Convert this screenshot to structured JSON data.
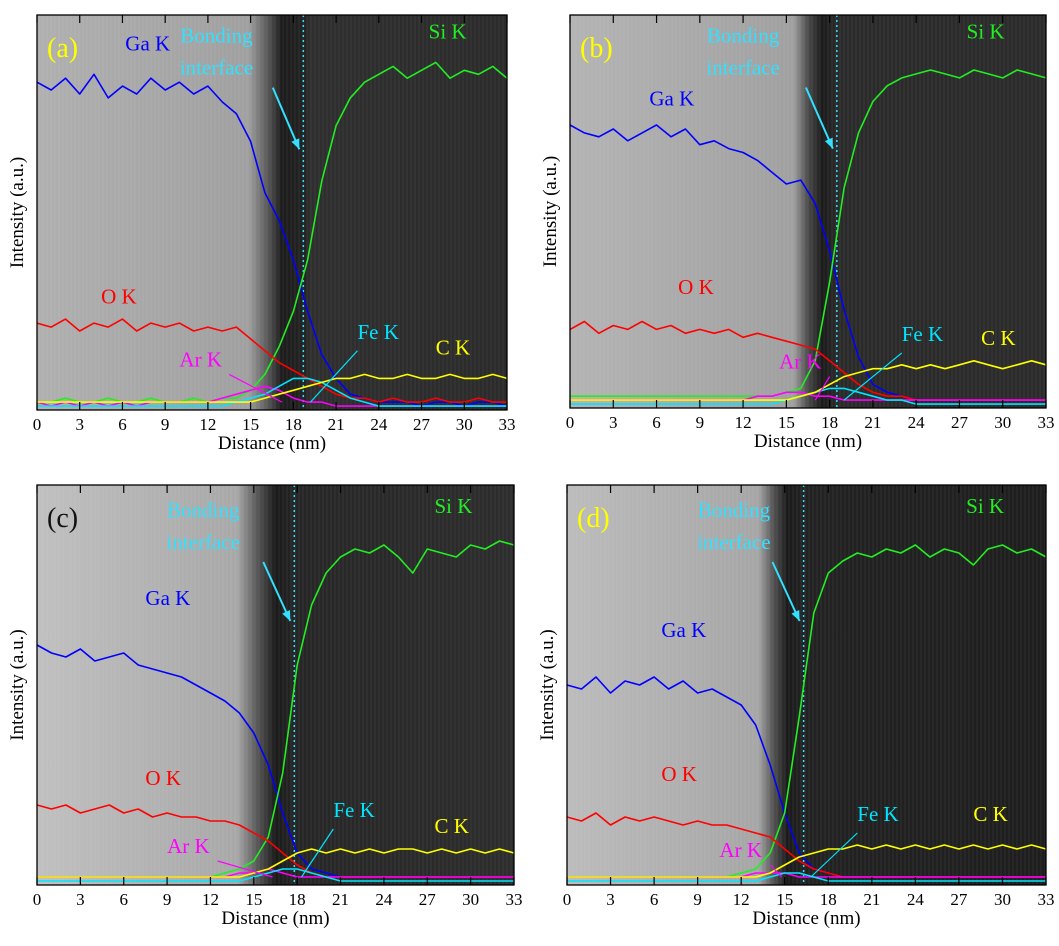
{
  "chart_data": [
    {
      "type": "line",
      "panel_label": "(a)",
      "label_color": "#ffff00",
      "xlabel": "Distance (nm)",
      "ylabel": "Intensity (a.u.)",
      "annotation": [
        "Bonding",
        "interface"
      ],
      "interface_x": 18.7,
      "xlim": [
        0,
        33
      ],
      "xticks": [
        0,
        3,
        6,
        9,
        12,
        15,
        18,
        21,
        24,
        27,
        30,
        33
      ],
      "ylim": [
        0,
        100
      ],
      "x": [
        0,
        1,
        2,
        3,
        4,
        5,
        6,
        7,
        8,
        9,
        10,
        11,
        12,
        13,
        14,
        15,
        16,
        17,
        18,
        19,
        20,
        21,
        22,
        23,
        24,
        25,
        26,
        27,
        28,
        29,
        30,
        31,
        32,
        33
      ],
      "series": [
        {
          "name": "Ga K",
          "color": "#0000ff",
          "values": [
            83,
            81,
            84,
            80,
            85,
            79,
            82,
            80,
            84,
            81,
            83,
            80,
            82,
            78,
            75,
            68,
            55,
            48,
            38,
            25,
            14,
            8,
            4,
            3,
            2,
            2,
            2,
            1,
            2,
            2,
            1,
            2,
            2,
            1
          ]
        },
        {
          "name": "Si K",
          "color": "#22ee22",
          "values": [
            2,
            2,
            3,
            2,
            2,
            3,
            2,
            2,
            3,
            2,
            2,
            3,
            2,
            3,
            3,
            5,
            9,
            16,
            25,
            38,
            58,
            72,
            79,
            83,
            85,
            87,
            84,
            86,
            88,
            84,
            86,
            85,
            87,
            84
          ]
        },
        {
          "name": "O K",
          "color": "#ff0000",
          "values": [
            22,
            21,
            23,
            20,
            22,
            21,
            23,
            20,
            22,
            21,
            22,
            20,
            21,
            20,
            21,
            18,
            15,
            12,
            10,
            8,
            6,
            4,
            3,
            3,
            2,
            3,
            2,
            2,
            3,
            2,
            2,
            3,
            2,
            2
          ]
        },
        {
          "name": "Ar K",
          "color": "#ff00ff",
          "values": [
            2,
            1,
            2,
            1,
            2,
            1,
            2,
            1,
            2,
            2,
            2,
            2,
            2,
            3,
            4,
            5,
            6,
            5,
            3,
            2,
            2,
            1,
            1,
            1,
            1,
            1,
            1,
            1,
            1,
            1,
            1,
            1,
            1,
            1
          ]
        },
        {
          "name": "Fe K",
          "color": "#00e5ff",
          "values": [
            1,
            1,
            1,
            1,
            1,
            1,
            1,
            1,
            1,
            1,
            1,
            1,
            1,
            1,
            2,
            3,
            4,
            6,
            8,
            8,
            7,
            5,
            3,
            2,
            1,
            1,
            1,
            1,
            1,
            1,
            1,
            1,
            1,
            1
          ]
        },
        {
          "name": "C K",
          "color": "#ffff00",
          "values": [
            2,
            2,
            2,
            2,
            2,
            2,
            2,
            2,
            2,
            2,
            2,
            2,
            2,
            2,
            2,
            2,
            3,
            4,
            5,
            6,
            7,
            8,
            8,
            9,
            8,
            8,
            9,
            8,
            8,
            9,
            8,
            8,
            9,
            8
          ]
        }
      ]
    },
    {
      "type": "line",
      "panel_label": "(b)",
      "label_color": "#ffff00",
      "xlabel": "Distance (nm)",
      "ylabel": "Intensity (a.u.)",
      "annotation": [
        "Bonding",
        "interface"
      ],
      "interface_x": 18.5,
      "xlim": [
        0,
        33
      ],
      "xticks": [
        0,
        3,
        6,
        9,
        12,
        15,
        18,
        21,
        24,
        27,
        30,
        33
      ],
      "ylim": [
        0,
        100
      ],
      "x": [
        0,
        1,
        2,
        3,
        4,
        5,
        6,
        7,
        8,
        9,
        10,
        11,
        12,
        13,
        14,
        15,
        16,
        17,
        18,
        19,
        20,
        21,
        22,
        23,
        24,
        25,
        26,
        27,
        28,
        29,
        30,
        31,
        32,
        33
      ],
      "series": [
        {
          "name": "Ga K",
          "color": "#0000ff",
          "values": [
            72,
            70,
            69,
            71,
            68,
            70,
            72,
            69,
            71,
            67,
            68,
            66,
            65,
            63,
            60,
            57,
            58,
            52,
            40,
            25,
            13,
            6,
            4,
            3,
            2,
            2,
            2,
            2,
            2,
            2,
            2,
            2,
            2,
            2
          ]
        },
        {
          "name": "Si K",
          "color": "#22ee22",
          "values": [
            3,
            3,
            3,
            3,
            3,
            3,
            3,
            3,
            3,
            3,
            3,
            3,
            3,
            3,
            3,
            4,
            5,
            12,
            32,
            56,
            70,
            78,
            82,
            84,
            85,
            86,
            85,
            84,
            86,
            85,
            84,
            86,
            85,
            84
          ]
        },
        {
          "name": "O K",
          "color": "#ff0000",
          "values": [
            20,
            22,
            19,
            21,
            20,
            22,
            20,
            21,
            19,
            20,
            19,
            20,
            18,
            19,
            18,
            17,
            16,
            15,
            12,
            9,
            6,
            4,
            3,
            3,
            2,
            2,
            2,
            2,
            2,
            2,
            2,
            2,
            2,
            2
          ]
        },
        {
          "name": "Ar K",
          "color": "#ff00ff",
          "values": [
            2,
            2,
            2,
            2,
            2,
            2,
            2,
            2,
            2,
            2,
            2,
            2,
            2,
            3,
            3,
            4,
            4,
            3,
            3,
            2,
            2,
            2,
            2,
            2,
            2,
            2,
            2,
            2,
            2,
            2,
            2,
            2,
            2,
            2
          ]
        },
        {
          "name": "Fe K",
          "color": "#00e5ff",
          "values": [
            1,
            1,
            1,
            1,
            1,
            1,
            1,
            1,
            1,
            1,
            1,
            1,
            1,
            1,
            1,
            2,
            3,
            4,
            5,
            5,
            4,
            3,
            2,
            2,
            1,
            1,
            1,
            1,
            1,
            1,
            1,
            1,
            1,
            1
          ]
        },
        {
          "name": "C K",
          "color": "#ffff00",
          "values": [
            2,
            2,
            2,
            2,
            2,
            2,
            2,
            2,
            2,
            2,
            2,
            2,
            2,
            2,
            2,
            2,
            3,
            4,
            6,
            8,
            9,
            10,
            10,
            11,
            10,
            11,
            10,
            11,
            12,
            11,
            10,
            11,
            12,
            11
          ]
        }
      ]
    },
    {
      "type": "line",
      "panel_label": "(c)",
      "label_color": "#111111",
      "xlabel": "Distance (nm)",
      "ylabel": "Intensity (a.u.)",
      "annotation": [
        "Bonding",
        "interface"
      ],
      "interface_x": 17.8,
      "xlim": [
        0,
        33
      ],
      "xticks": [
        0,
        3,
        6,
        9,
        12,
        15,
        18,
        21,
        24,
        27,
        30,
        33
      ],
      "ylim": [
        0,
        100
      ],
      "x": [
        0,
        1,
        2,
        3,
        4,
        5,
        6,
        7,
        8,
        9,
        10,
        11,
        12,
        13,
        14,
        15,
        16,
        17,
        18,
        19,
        20,
        21,
        22,
        23,
        24,
        25,
        26,
        27,
        28,
        29,
        30,
        31,
        32,
        33
      ],
      "series": [
        {
          "name": "Ga K",
          "color": "#0000ff",
          "values": [
            60,
            58,
            57,
            59,
            56,
            57,
            58,
            55,
            54,
            53,
            52,
            50,
            48,
            46,
            43,
            38,
            30,
            18,
            8,
            4,
            3,
            2,
            2,
            2,
            2,
            2,
            2,
            2,
            2,
            2,
            2,
            2,
            2,
            2
          ]
        },
        {
          "name": "Si K",
          "color": "#22ee22",
          "values": [
            2,
            2,
            2,
            2,
            2,
            2,
            2,
            2,
            2,
            2,
            2,
            2,
            2,
            3,
            4,
            6,
            12,
            28,
            55,
            70,
            78,
            82,
            84,
            83,
            85,
            82,
            78,
            84,
            83,
            82,
            85,
            84,
            86,
            85
          ]
        },
        {
          "name": "O K",
          "color": "#ff0000",
          "values": [
            20,
            19,
            20,
            18,
            19,
            20,
            18,
            19,
            17,
            18,
            17,
            17,
            16,
            16,
            15,
            13,
            11,
            8,
            5,
            3,
            2,
            2,
            2,
            2,
            2,
            2,
            2,
            2,
            2,
            2,
            2,
            2,
            2,
            2
          ]
        },
        {
          "name": "Ar K",
          "color": "#ff00ff",
          "values": [
            2,
            2,
            2,
            2,
            2,
            2,
            2,
            2,
            2,
            2,
            2,
            2,
            2,
            2,
            3,
            3,
            4,
            3,
            2,
            2,
            2,
            2,
            2,
            2,
            2,
            2,
            2,
            2,
            2,
            2,
            2,
            2,
            2,
            2
          ]
        },
        {
          "name": "Fe K",
          "color": "#00e5ff",
          "values": [
            1,
            1,
            1,
            1,
            1,
            1,
            1,
            1,
            1,
            1,
            1,
            1,
            1,
            1,
            1,
            2,
            3,
            4,
            4,
            3,
            2,
            1,
            1,
            1,
            1,
            1,
            1,
            1,
            1,
            1,
            1,
            1,
            1,
            1
          ]
        },
        {
          "name": "C K",
          "color": "#ffff00",
          "values": [
            2,
            2,
            2,
            2,
            2,
            2,
            2,
            2,
            2,
            2,
            2,
            2,
            2,
            2,
            2,
            3,
            4,
            6,
            8,
            9,
            8,
            9,
            8,
            9,
            8,
            9,
            9,
            8,
            9,
            8,
            9,
            8,
            9,
            8
          ]
        }
      ]
    },
    {
      "type": "line",
      "panel_label": "(d)",
      "label_color": "#ffff00",
      "xlabel": "Distance (nm)",
      "ylabel": "Intensity (a.u.)",
      "annotation": [
        "Bonding",
        "interface"
      ],
      "interface_x": 16.3,
      "xlim": [
        0,
        33
      ],
      "xticks": [
        0,
        3,
        6,
        9,
        12,
        15,
        18,
        21,
        24,
        27,
        30,
        33
      ],
      "ylim": [
        0,
        100
      ],
      "x": [
        0,
        1,
        2,
        3,
        4,
        5,
        6,
        7,
        8,
        9,
        10,
        11,
        12,
        13,
        14,
        15,
        16,
        17,
        18,
        19,
        20,
        21,
        22,
        23,
        24,
        25,
        26,
        27,
        28,
        29,
        30,
        31,
        32,
        33
      ],
      "series": [
        {
          "name": "Ga K",
          "color": "#0000ff",
          "values": [
            50,
            49,
            52,
            48,
            51,
            50,
            52,
            49,
            51,
            48,
            49,
            47,
            45,
            40,
            30,
            18,
            8,
            4,
            3,
            2,
            2,
            2,
            2,
            2,
            2,
            2,
            2,
            2,
            2,
            2,
            2,
            2,
            2,
            2
          ]
        },
        {
          "name": "Si K",
          "color": "#22ee22",
          "values": [
            2,
            2,
            2,
            2,
            2,
            2,
            2,
            2,
            2,
            2,
            2,
            2,
            3,
            4,
            8,
            18,
            42,
            68,
            78,
            81,
            83,
            82,
            84,
            83,
            85,
            82,
            84,
            83,
            80,
            84,
            85,
            83,
            84,
            82
          ]
        },
        {
          "name": "O K",
          "color": "#ff0000",
          "values": [
            17,
            16,
            18,
            15,
            17,
            16,
            17,
            16,
            15,
            16,
            15,
            15,
            14,
            13,
            12,
            9,
            6,
            4,
            3,
            2,
            2,
            2,
            2,
            2,
            2,
            2,
            2,
            2,
            2,
            2,
            2,
            2,
            2,
            2
          ]
        },
        {
          "name": "Ar K",
          "color": "#ff00ff",
          "values": [
            2,
            2,
            2,
            2,
            2,
            2,
            2,
            2,
            2,
            2,
            2,
            2,
            2,
            3,
            3,
            3,
            2,
            2,
            2,
            2,
            2,
            2,
            2,
            2,
            2,
            2,
            2,
            2,
            2,
            2,
            2,
            2,
            2,
            2
          ]
        },
        {
          "name": "Fe K",
          "color": "#00e5ff",
          "values": [
            1,
            1,
            1,
            1,
            1,
            1,
            1,
            1,
            1,
            1,
            1,
            1,
            1,
            1,
            2,
            3,
            3,
            2,
            1,
            1,
            1,
            1,
            1,
            1,
            1,
            1,
            1,
            1,
            1,
            1,
            1,
            1,
            1,
            1
          ]
        },
        {
          "name": "C K",
          "color": "#ffff00",
          "values": [
            2,
            2,
            2,
            2,
            2,
            2,
            2,
            2,
            2,
            2,
            2,
            2,
            2,
            2,
            3,
            5,
            7,
            8,
            9,
            9,
            10,
            9,
            10,
            9,
            10,
            9,
            10,
            9,
            10,
            9,
            10,
            9,
            10,
            9
          ]
        }
      ]
    }
  ]
}
